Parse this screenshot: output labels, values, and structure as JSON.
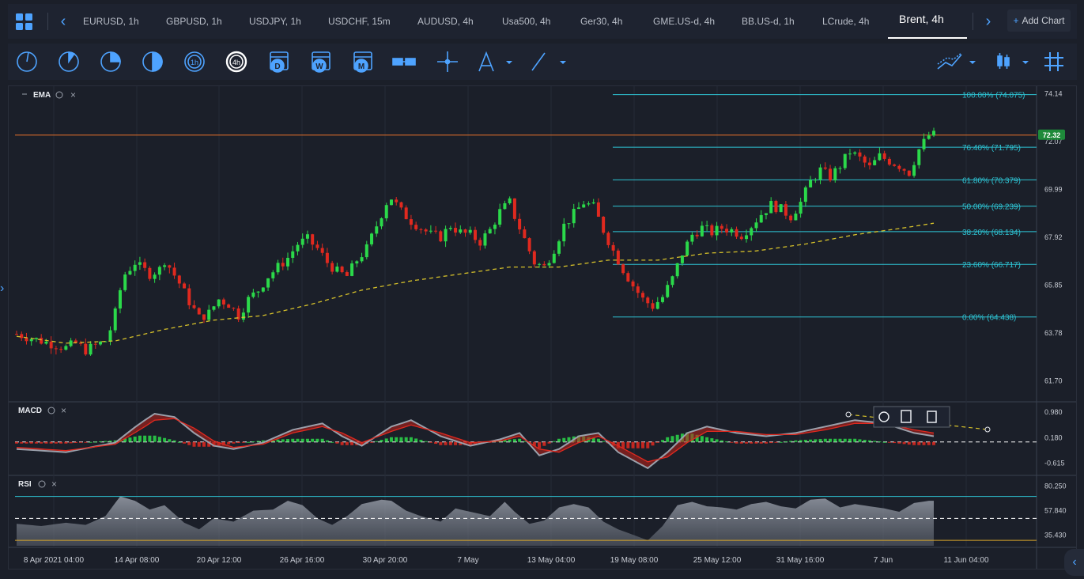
{
  "tabs": [
    {
      "label": "EURUSD, 1h"
    },
    {
      "label": "GBPUSD, 1h"
    },
    {
      "label": "USDJPY, 1h"
    },
    {
      "label": "USDCHF, 15m"
    },
    {
      "label": "AUDUSD, 4h"
    },
    {
      "label": "Usa500, 4h"
    },
    {
      "label": "Ger30, 4h"
    },
    {
      "label": "GME.US-d, 4h"
    },
    {
      "label": "BB.US-d, 1h"
    },
    {
      "label": "LCrude, 4h"
    },
    {
      "label": "Brent, 4h"
    }
  ],
  "active_tab": 10,
  "add_chart_label": "Add Chart",
  "toolbar": {
    "timeframes": [
      "1h",
      "4h"
    ],
    "periods": [
      "D",
      "W",
      "M"
    ]
  },
  "colors": {
    "accent": "#4ea3ff",
    "bull": "#2bd94a",
    "bear": "#e0291f",
    "fib": "#2ec4d4",
    "ema": "#d6c12a",
    "price_line": "#c0622a",
    "price_tag": "#1e8a3a"
  },
  "chart_data": [
    {
      "type": "candlestick",
      "indicator_label": "EMA",
      "y_ticks": [
        "74.14",
        "72.07",
        "69.99",
        "67.92",
        "65.85",
        "63.78",
        "61.70"
      ],
      "ylim": [
        61.0,
        74.3
      ],
      "x_labels": [
        "8 Apr 2021 04:00",
        "14 Apr 08:00",
        "20 Apr 12:00",
        "26 Apr 16:00",
        "30 Apr 20:00",
        "7 May",
        "13 May 04:00",
        "19 May 08:00",
        "25 May 12:00",
        "31 May 16:00",
        "7 Jun",
        "11 Jun 04:00"
      ],
      "current_price": "72.32",
      "current_price_value": 72.32,
      "fib_levels": [
        {
          "label": "100.00% (74.075)",
          "value": 74.075
        },
        {
          "label": "76.40% (71.795)",
          "value": 71.795
        },
        {
          "label": "61.80% (70.379)",
          "value": 70.379
        },
        {
          "label": "50.00% (69.239)",
          "value": 69.239
        },
        {
          "label": "38.20% (68.134)",
          "value": 68.134
        },
        {
          "label": "23.60% (66.717)",
          "value": 66.717
        },
        {
          "label": "0.00% (64.438)",
          "value": 64.438
        }
      ],
      "close_path": [
        [
          0,
          63.7
        ],
        [
          5,
          63.4
        ],
        [
          10,
          63.1
        ],
        [
          12,
          63.3
        ],
        [
          14,
          63.0
        ],
        [
          18,
          63.4
        ],
        [
          19,
          63.9
        ],
        [
          20,
          64.6
        ],
        [
          21,
          65.6
        ],
        [
          22,
          66.3
        ],
        [
          24,
          66.8
        ],
        [
          25,
          66.6
        ],
        [
          27,
          66.3
        ],
        [
          29,
          66.5
        ],
        [
          30,
          66.9
        ],
        [
          31,
          66.6
        ],
        [
          33,
          65.9
        ],
        [
          35,
          65.1
        ],
        [
          37,
          64.4
        ],
        [
          39,
          64.6
        ],
        [
          41,
          65.2
        ],
        [
          43,
          65.0
        ],
        [
          45,
          64.5
        ],
        [
          47,
          65.2
        ],
        [
          49,
          65.6
        ],
        [
          51,
          66.2
        ],
        [
          53,
          66.6
        ],
        [
          55,
          67.0
        ],
        [
          57,
          67.6
        ],
        [
          59,
          67.8
        ],
        [
          61,
          67.4
        ],
        [
          63,
          66.8
        ],
        [
          65,
          66.4
        ],
        [
          67,
          66.2
        ],
        [
          69,
          66.9
        ],
        [
          71,
          67.4
        ],
        [
          73,
          68.4
        ],
        [
          75,
          69.4
        ],
        [
          76,
          69.6
        ],
        [
          78,
          69.0
        ],
        [
          80,
          68.6
        ],
        [
          82,
          68.3
        ],
        [
          84,
          68.0
        ],
        [
          86,
          67.9
        ],
        [
          88,
          68.4
        ],
        [
          90,
          68.1
        ],
        [
          92,
          68.0
        ],
        [
          94,
          67.7
        ],
        [
          96,
          68.2
        ],
        [
          98,
          69.0
        ],
        [
          100,
          69.4
        ],
        [
          101,
          68.8
        ],
        [
          103,
          67.8
        ],
        [
          105,
          66.8
        ],
        [
          107,
          66.6
        ],
        [
          109,
          67.4
        ],
        [
          111,
          68.4
        ],
        [
          113,
          68.9
        ],
        [
          115,
          69.4
        ],
        [
          117,
          69.2
        ],
        [
          119,
          68.2
        ],
        [
          121,
          67.3
        ],
        [
          123,
          66.5
        ],
        [
          125,
          65.8
        ],
        [
          127,
          65.2
        ],
        [
          129,
          64.9
        ],
        [
          131,
          65.3
        ],
        [
          133,
          66.1
        ],
        [
          135,
          67.2
        ],
        [
          137,
          68.0
        ],
        [
          139,
          68.3
        ],
        [
          141,
          68.1
        ],
        [
          143,
          68.3
        ],
        [
          145,
          68.2
        ],
        [
          147,
          68.0
        ],
        [
          149,
          68.4
        ],
        [
          151,
          68.9
        ],
        [
          153,
          69.3
        ],
        [
          155,
          69.1
        ],
        [
          157,
          68.8
        ],
        [
          159,
          69.4
        ],
        [
          161,
          70.3
        ],
        [
          163,
          70.8
        ],
        [
          165,
          70.5
        ],
        [
          167,
          71.0
        ],
        [
          169,
          71.6
        ],
        [
          171,
          71.3
        ],
        [
          173,
          70.9
        ],
        [
          175,
          71.4
        ],
        [
          177,
          71.2
        ],
        [
          179,
          71.0
        ],
        [
          181,
          70.7
        ],
        [
          183,
          71.7
        ],
        [
          185,
          72.3
        ],
        [
          186,
          72.32
        ]
      ],
      "ema_path": [
        [
          0,
          63.6
        ],
        [
          10,
          63.3
        ],
        [
          20,
          63.4
        ],
        [
          30,
          63.9
        ],
        [
          40,
          64.3
        ],
        [
          50,
          64.5
        ],
        [
          60,
          65.0
        ],
        [
          70,
          65.6
        ],
        [
          80,
          66.0
        ],
        [
          90,
          66.3
        ],
        [
          100,
          66.6
        ],
        [
          110,
          66.6
        ],
        [
          120,
          66.9
        ],
        [
          130,
          66.9
        ],
        [
          140,
          67.2
        ],
        [
          150,
          67.3
        ],
        [
          160,
          67.6
        ],
        [
          170,
          68.0
        ],
        [
          180,
          68.3
        ],
        [
          186,
          68.5
        ]
      ]
    },
    {
      "type": "area",
      "indicator_label": "MACD",
      "y_ticks": [
        "0.980",
        "0.180",
        "-0.615"
      ],
      "ylim": [
        -0.95,
        1.2
      ],
      "macd_path": [
        [
          0,
          -0.2
        ],
        [
          10,
          -0.3
        ],
        [
          20,
          0.0
        ],
        [
          25,
          0.6
        ],
        [
          28,
          0.9
        ],
        [
          32,
          0.8
        ],
        [
          36,
          0.3
        ],
        [
          40,
          -0.1
        ],
        [
          44,
          -0.2
        ],
        [
          50,
          0.0
        ],
        [
          56,
          0.4
        ],
        [
          62,
          0.6
        ],
        [
          66,
          0.2
        ],
        [
          70,
          -0.1
        ],
        [
          76,
          0.5
        ],
        [
          80,
          0.7
        ],
        [
          86,
          0.2
        ],
        [
          92,
          -0.1
        ],
        [
          98,
          0.1
        ],
        [
          102,
          0.3
        ],
        [
          106,
          -0.4
        ],
        [
          110,
          -0.2
        ],
        [
          114,
          0.2
        ],
        [
          118,
          0.3
        ],
        [
          122,
          -0.3
        ],
        [
          128,
          -0.8
        ],
        [
          132,
          -0.3
        ],
        [
          136,
          0.3
        ],
        [
          140,
          0.5
        ],
        [
          146,
          0.3
        ],
        [
          152,
          0.2
        ],
        [
          158,
          0.3
        ],
        [
          164,
          0.5
        ],
        [
          170,
          0.7
        ],
        [
          176,
          0.6
        ],
        [
          182,
          0.3
        ],
        [
          186,
          0.2
        ]
      ],
      "signal_path": [
        [
          0,
          -0.15
        ],
        [
          10,
          -0.25
        ],
        [
          20,
          -0.05
        ],
        [
          25,
          0.4
        ],
        [
          28,
          0.7
        ],
        [
          32,
          0.75
        ],
        [
          36,
          0.45
        ],
        [
          40,
          0.05
        ],
        [
          44,
          -0.15
        ],
        [
          50,
          -0.05
        ],
        [
          56,
          0.3
        ],
        [
          62,
          0.5
        ],
        [
          66,
          0.3
        ],
        [
          70,
          0.0
        ],
        [
          76,
          0.35
        ],
        [
          80,
          0.55
        ],
        [
          86,
          0.3
        ],
        [
          92,
          0.0
        ],
        [
          98,
          0.05
        ],
        [
          102,
          0.2
        ],
        [
          106,
          -0.2
        ],
        [
          110,
          -0.3
        ],
        [
          114,
          0.0
        ],
        [
          118,
          0.2
        ],
        [
          122,
          -0.1
        ],
        [
          128,
          -0.6
        ],
        [
          132,
          -0.45
        ],
        [
          136,
          0.0
        ],
        [
          140,
          0.35
        ],
        [
          146,
          0.35
        ],
        [
          152,
          0.25
        ],
        [
          158,
          0.25
        ],
        [
          164,
          0.4
        ],
        [
          170,
          0.6
        ],
        [
          176,
          0.6
        ],
        [
          182,
          0.4
        ],
        [
          186,
          0.3
        ]
      ]
    },
    {
      "type": "area",
      "indicator_label": "RSI",
      "y_ticks": [
        "80.250",
        "57.840",
        "35.430"
      ],
      "ylim": [
        25,
        87
      ],
      "levels": [
        70,
        50,
        30
      ],
      "rsi_path": [
        [
          0,
          45
        ],
        [
          5,
          43
        ],
        [
          10,
          46
        ],
        [
          14,
          44
        ],
        [
          18,
          52
        ],
        [
          21,
          70
        ],
        [
          24,
          66
        ],
        [
          27,
          58
        ],
        [
          30,
          62
        ],
        [
          34,
          46
        ],
        [
          37,
          40
        ],
        [
          40,
          50
        ],
        [
          44,
          47
        ],
        [
          48,
          57
        ],
        [
          52,
          58
        ],
        [
          55,
          66
        ],
        [
          58,
          62
        ],
        [
          61,
          50
        ],
        [
          64,
          44
        ],
        [
          67,
          52
        ],
        [
          70,
          63
        ],
        [
          74,
          67
        ],
        [
          76,
          66
        ],
        [
          79,
          57
        ],
        [
          82,
          52
        ],
        [
          86,
          47
        ],
        [
          89,
          59
        ],
        [
          92,
          56
        ],
        [
          96,
          52
        ],
        [
          99,
          65
        ],
        [
          101,
          56
        ],
        [
          104,
          45
        ],
        [
          107,
          48
        ],
        [
          110,
          60
        ],
        [
          113,
          63
        ],
        [
          116,
          60
        ],
        [
          119,
          47
        ],
        [
          122,
          40
        ],
        [
          125,
          35
        ],
        [
          128,
          30
        ],
        [
          131,
          43
        ],
        [
          134,
          62
        ],
        [
          137,
          65
        ],
        [
          140,
          61
        ],
        [
          143,
          60
        ],
        [
          146,
          58
        ],
        [
          149,
          63
        ],
        [
          152,
          65
        ],
        [
          155,
          61
        ],
        [
          158,
          59
        ],
        [
          161,
          67
        ],
        [
          164,
          68
        ],
        [
          167,
          60
        ],
        [
          170,
          63
        ],
        [
          173,
          61
        ],
        [
          176,
          59
        ],
        [
          179,
          56
        ],
        [
          182,
          64
        ],
        [
          185,
          66
        ],
        [
          186,
          66
        ]
      ]
    }
  ]
}
